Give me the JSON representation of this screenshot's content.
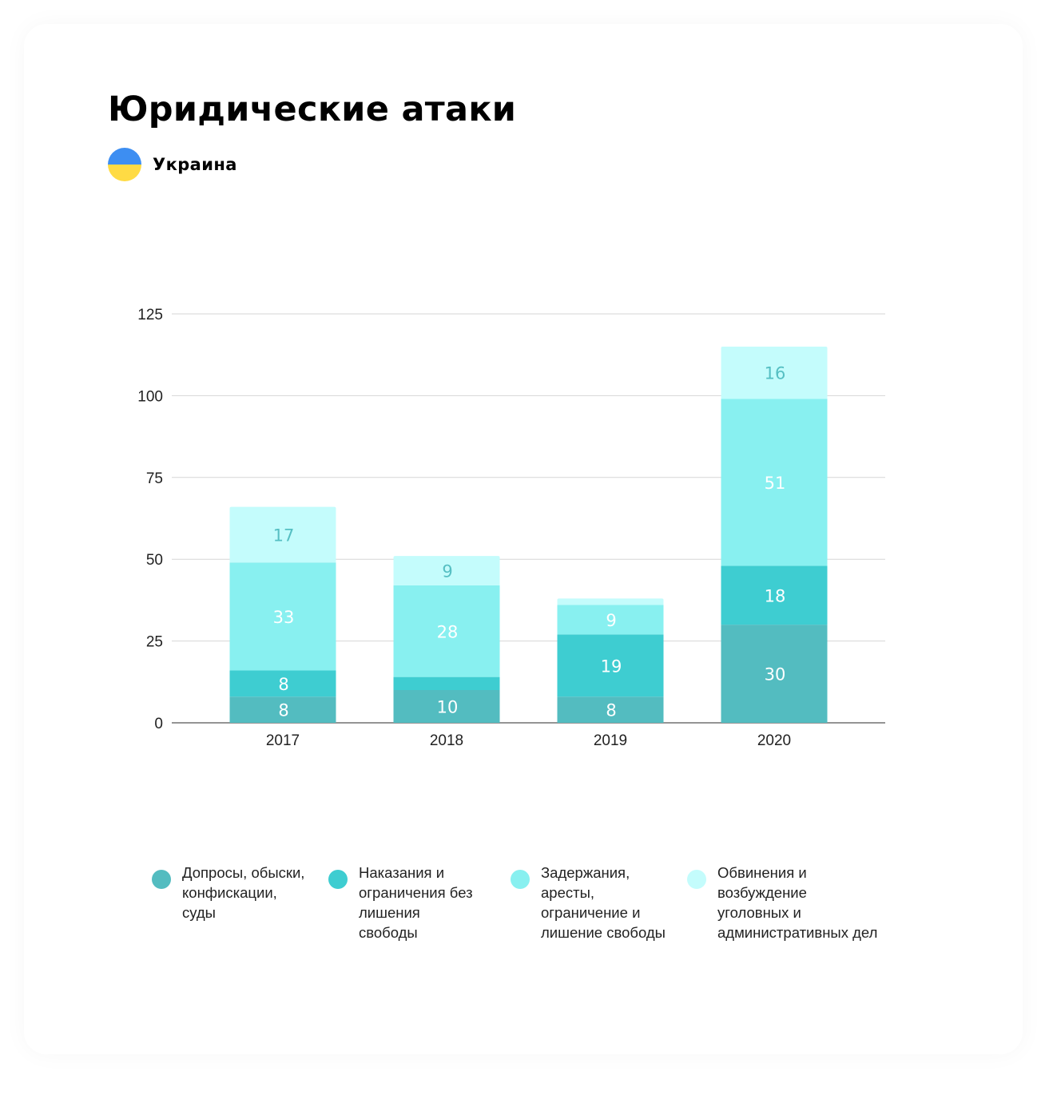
{
  "header": {
    "title": "Юридические атаки",
    "country": "Украина",
    "flag_colors": [
      "#3d8ef2",
      "#ffdb44"
    ]
  },
  "chart_data": {
    "type": "bar",
    "stacked": true,
    "categories": [
      "2017",
      "2018",
      "2019",
      "2020"
    ],
    "ylim": [
      0,
      125
    ],
    "yticks": [
      0,
      25,
      50,
      75,
      100,
      125
    ],
    "grid": true,
    "legend_position": "bottom",
    "series": [
      {
        "name": "Допросы, обыски, конфискации, суды",
        "color": "#53bcc0",
        "label_color": "#ffffff",
        "values": [
          8,
          10,
          8,
          30
        ],
        "labels": [
          "8",
          "10",
          "8",
          "30"
        ]
      },
      {
        "name": "Наказания и ограничения без лишения свободы",
        "color": "#3ecdd1",
        "label_color": "#ffffff",
        "values": [
          8,
          4,
          19,
          18
        ],
        "labels": [
          "8",
          "",
          "19",
          "18"
        ]
      },
      {
        "name": "Задержания, аресты, ограничение и лишение свободы",
        "color": "#88f0f0",
        "label_color": "#ffffff",
        "values": [
          33,
          28,
          9,
          51
        ],
        "labels": [
          "33",
          "28",
          "9",
          "51"
        ]
      },
      {
        "name": "Обвинения и возбуждение уголовных и административных дел",
        "color": "#c4fcfc",
        "label_color": "#55bfc3",
        "values": [
          17,
          9,
          2,
          16
        ],
        "labels": [
          "17",
          "9",
          "",
          "16"
        ]
      }
    ]
  },
  "legend": {
    "items": [
      {
        "label": "Допросы, обыски,\nконфискации,\nсуды",
        "color": "#53bcc0"
      },
      {
        "label": "Наказания и\nограничения без\nлишения\nсвободы",
        "color": "#3ecdd1"
      },
      {
        "label": "Задержания,\nаресты,\nограничение и\nлишение свободы",
        "color": "#88f0f0"
      },
      {
        "label": "Обвинения и\nвозбуждение\nуголовных и\nадминистративных дел",
        "color": "#c4fcfc"
      }
    ]
  }
}
